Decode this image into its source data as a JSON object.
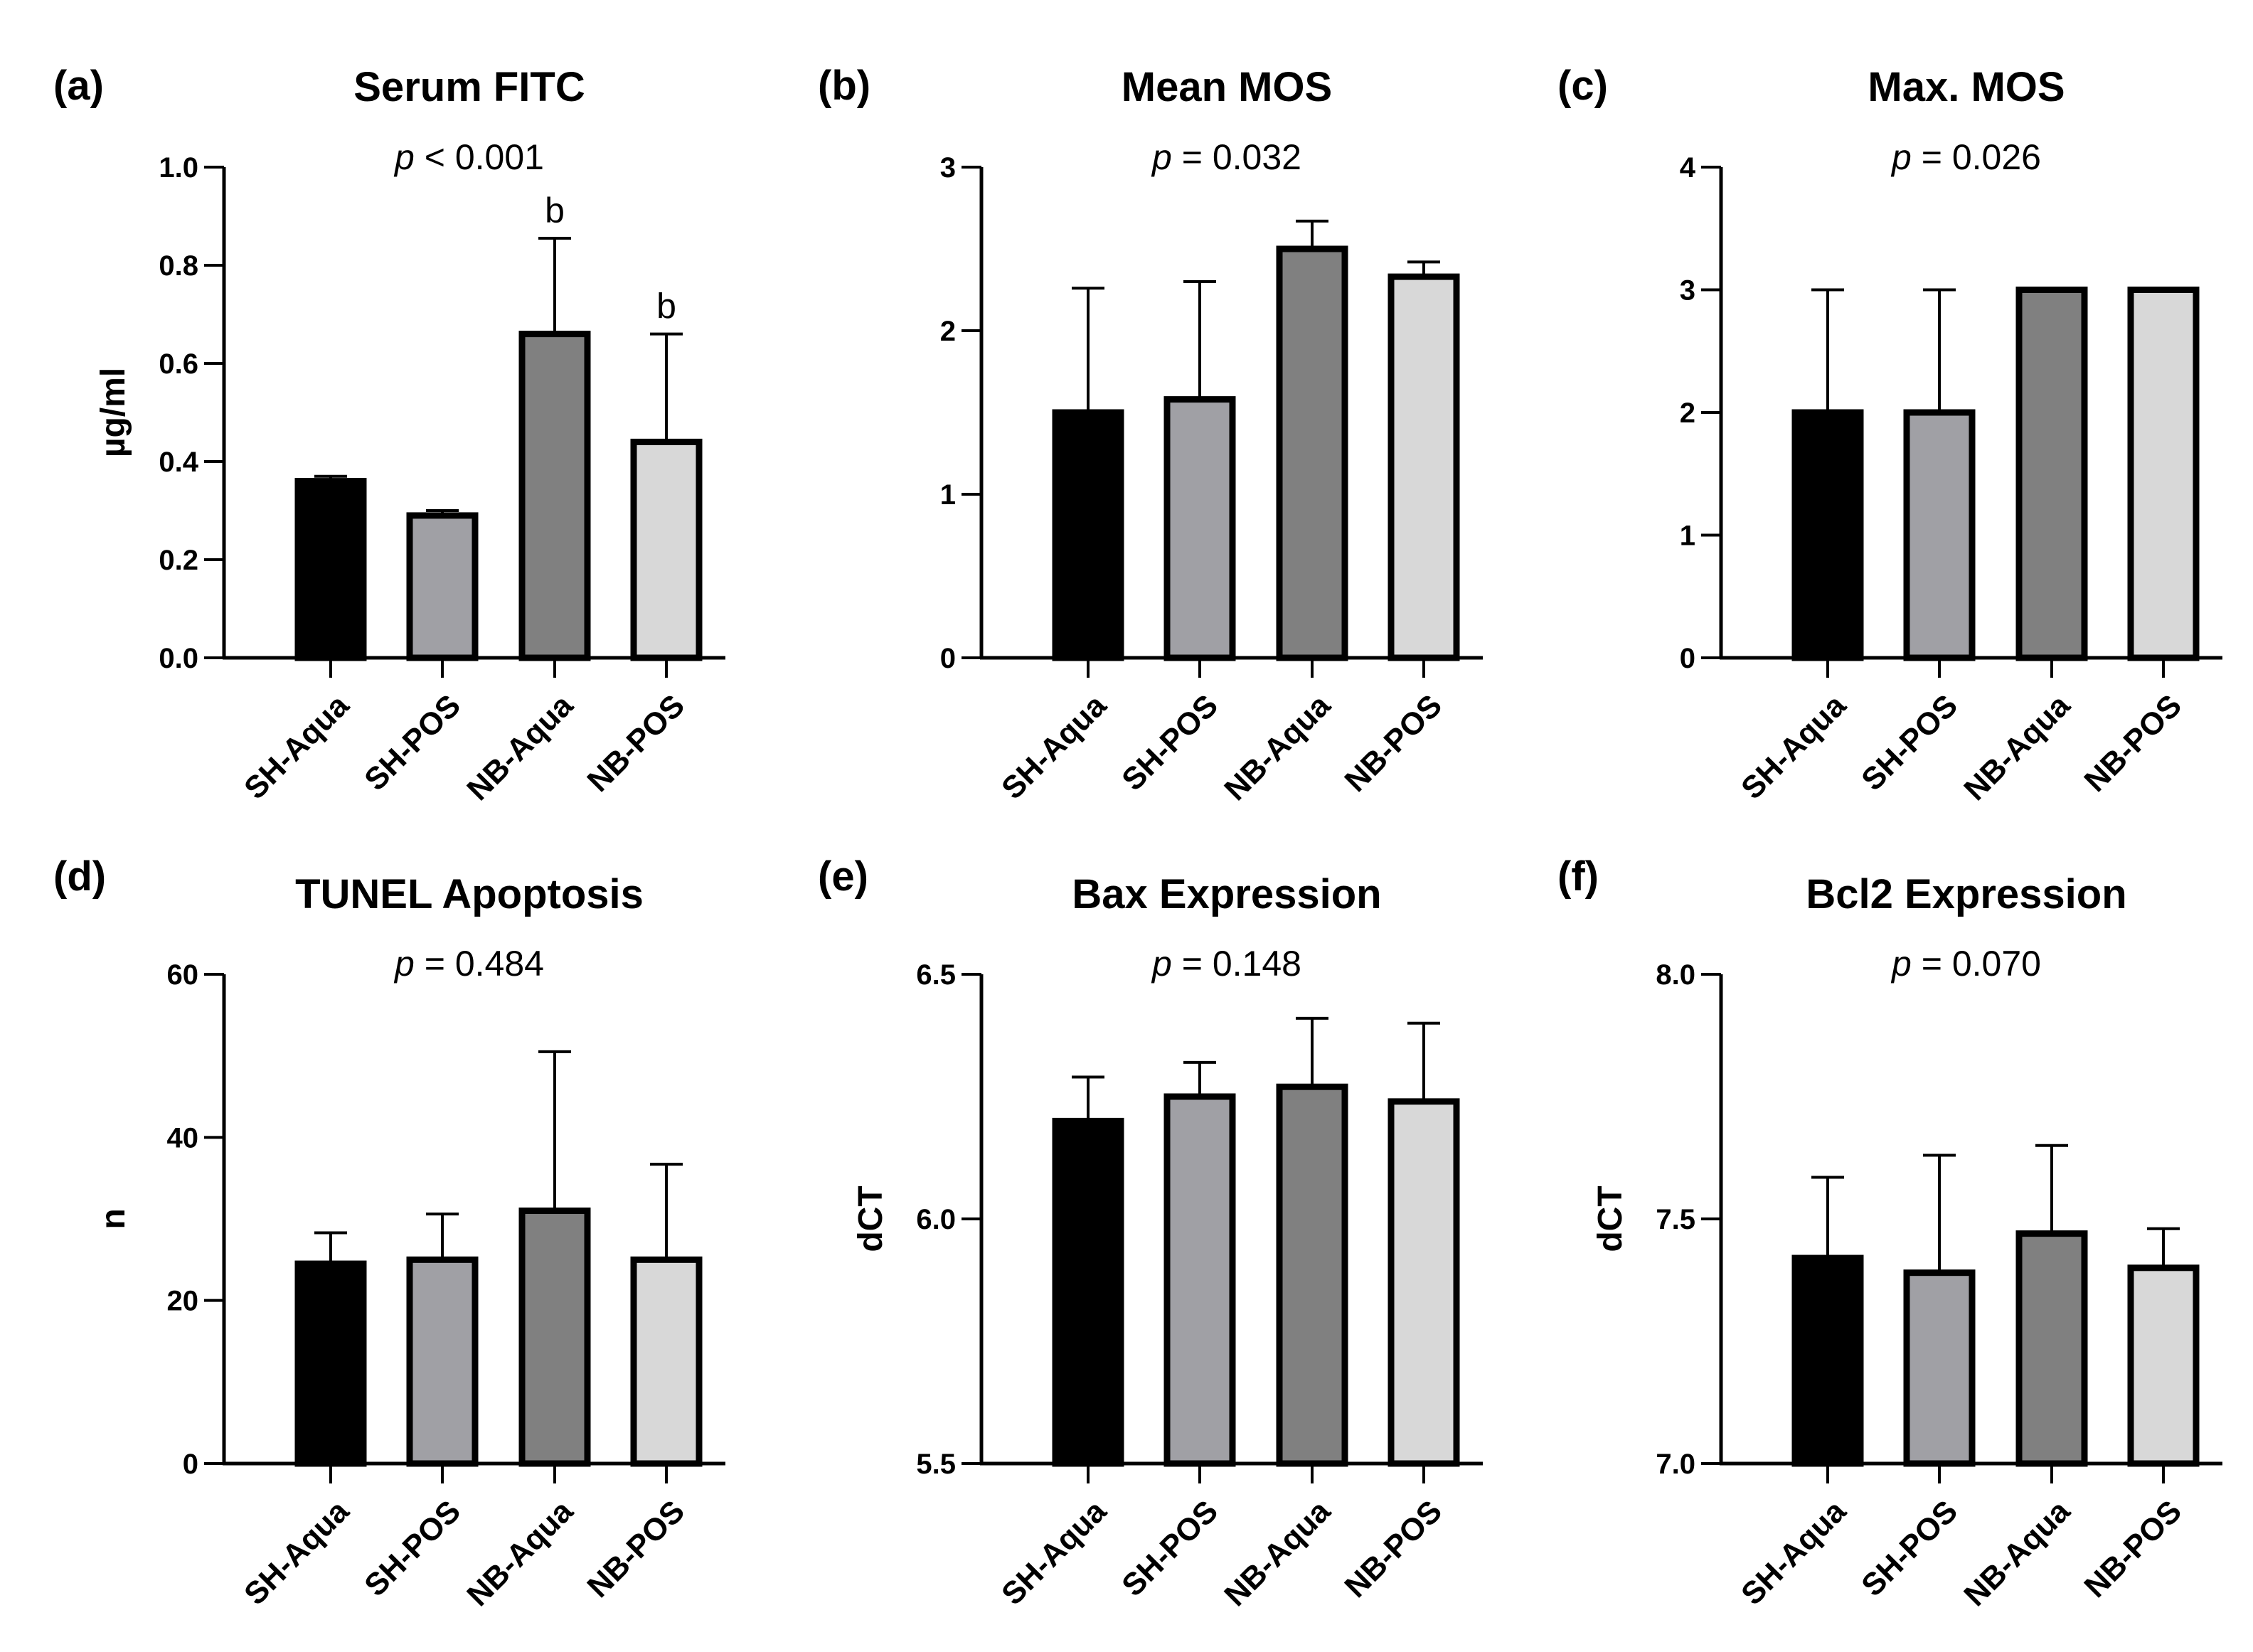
{
  "figure": {
    "background": "#ffffff"
  },
  "chart_data": [
    {
      "type": "bar",
      "panel": "(a)",
      "title": "Serum FITC",
      "p_italic": "p",
      "p_rest": " < 0.001",
      "xlabel": "",
      "ylabel": "µg/ml",
      "ylim": [
        0,
        1.0
      ],
      "yticks": [
        "0.0",
        "0.2",
        "0.4",
        "0.6",
        "0.8",
        "1.0"
      ],
      "categories": [
        "SH-Aqua",
        "SH-POS",
        "NB-Aqua",
        "NB-POS"
      ],
      "values": [
        0.36,
        0.29,
        0.66,
        0.44
      ],
      "errors": [
        0.01,
        0.01,
        0.195,
        0.22
      ],
      "annotations": [
        "",
        "",
        "b",
        "b"
      ],
      "colors": [
        "#000000",
        "#a0a0a5",
        "#808080",
        "#d8d8d8"
      ]
    },
    {
      "type": "bar",
      "panel": "(b)",
      "title": "Mean MOS",
      "p_italic": "p",
      "p_rest": " = 0.032",
      "xlabel": "",
      "ylabel": "",
      "ylim": [
        0,
        3
      ],
      "yticks": [
        "0",
        "1",
        "2",
        "3"
      ],
      "categories": [
        "SH-Aqua",
        "SH-POS",
        "NB-Aqua",
        "NB-POS"
      ],
      "values": [
        1.5,
        1.58,
        2.5,
        2.33
      ],
      "errors": [
        0.76,
        0.72,
        0.17,
        0.09
      ],
      "annotations": [
        "",
        "",
        "",
        ""
      ],
      "colors": [
        "#000000",
        "#a0a0a5",
        "#808080",
        "#d8d8d8"
      ]
    },
    {
      "type": "bar",
      "panel": "(c)",
      "title": "Max. MOS",
      "p_italic": "p",
      "p_rest": " = 0.026",
      "xlabel": "",
      "ylabel": "",
      "ylim": [
        0,
        4
      ],
      "yticks": [
        "0",
        "1",
        "2",
        "3",
        "4"
      ],
      "categories": [
        "SH-Aqua",
        "SH-POS",
        "NB-Aqua",
        "NB-POS"
      ],
      "values": [
        2.0,
        2.0,
        3.0,
        3.0
      ],
      "errors": [
        1.0,
        1.0,
        0.0,
        0.0
      ],
      "annotations": [
        "",
        "",
        "",
        ""
      ],
      "colors": [
        "#000000",
        "#a0a0a5",
        "#808080",
        "#d8d8d8"
      ]
    },
    {
      "type": "bar",
      "panel": "(d)",
      "title": "TUNEL Apoptosis",
      "p_italic": "p",
      "p_rest": " = 0.484",
      "xlabel": "",
      "ylabel": "n",
      "ylim": [
        0,
        60
      ],
      "yticks": [
        "0",
        "20",
        "40",
        "60"
      ],
      "categories": [
        "SH-Aqua",
        "SH-POS",
        "NB-Aqua",
        "NB-POS"
      ],
      "values": [
        24.5,
        25.0,
        31.0,
        25.0
      ],
      "errors": [
        3.8,
        5.6,
        19.5,
        11.7
      ],
      "annotations": [
        "",
        "",
        "",
        ""
      ],
      "colors": [
        "#000000",
        "#a0a0a5",
        "#808080",
        "#d8d8d8"
      ]
    },
    {
      "type": "bar",
      "panel": "(e)",
      "title": "Bax Expression",
      "p_italic": "p",
      "p_rest": " = 0.148",
      "xlabel": "",
      "ylabel": "dCT",
      "ylim": [
        5.5,
        6.5
      ],
      "yticks": [
        "5.5",
        "6.0",
        "6.5"
      ],
      "categories": [
        "SH-Aqua",
        "SH-POS",
        "NB-Aqua",
        "NB-POS"
      ],
      "values": [
        6.2,
        6.25,
        6.27,
        6.24
      ],
      "errors": [
        0.09,
        0.07,
        0.14,
        0.16
      ],
      "annotations": [
        "",
        "",
        "",
        ""
      ],
      "colors": [
        "#000000",
        "#a0a0a5",
        "#808080",
        "#d8d8d8"
      ]
    },
    {
      "type": "bar",
      "panel": "(f)",
      "title": "Bcl2 Expression",
      "p_italic": "p",
      "p_rest": " = 0.070",
      "xlabel": "",
      "ylabel": "dCT",
      "ylim": [
        7.0,
        8.0
      ],
      "yticks": [
        "7.0",
        "7.5",
        "8.0"
      ],
      "categories": [
        "SH-Aqua",
        "SH-POS",
        "NB-Aqua",
        "NB-POS"
      ],
      "values": [
        7.42,
        7.39,
        7.47,
        7.4
      ],
      "errors": [
        0.165,
        0.24,
        0.18,
        0.08
      ],
      "annotations": [
        "",
        "",
        "",
        ""
      ],
      "colors": [
        "#000000",
        "#a0a0a5",
        "#808080",
        "#d8d8d8"
      ]
    }
  ]
}
